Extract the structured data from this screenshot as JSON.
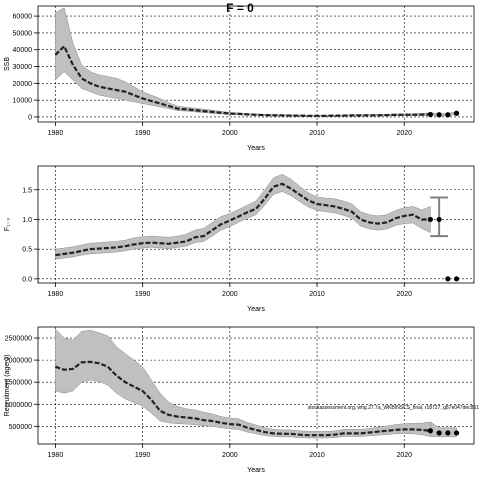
{
  "title": "F = 0",
  "annotation": "stockassessment.org, whg.27.7a_WKBINSCS_final, r18727, g87e047dec851",
  "colors": {
    "band": "#c0c0c0",
    "band_edge": "#8c8c8c",
    "line": "#222222",
    "grid": "#000000"
  },
  "chart_data": [
    {
      "type": "line",
      "xlabel": "Years",
      "ylabel": "SSB",
      "xlim": [
        1978,
        2028
      ],
      "ylim": [
        -3000,
        66000
      ],
      "xticks": [
        1980,
        1990,
        2000,
        2010,
        2020
      ],
      "yticks": [
        0,
        10000,
        20000,
        30000,
        40000,
        50000,
        60000
      ],
      "grid": true,
      "series": [
        {
          "x": [
            1980,
            1981,
            1982,
            1983,
            1984,
            1985,
            1986,
            1987,
            1988,
            1989,
            1990,
            1991,
            1992,
            1993,
            1994,
            1995,
            1996,
            1997,
            1998,
            1999,
            2000,
            2001,
            2002,
            2003,
            2004,
            2005,
            2006,
            2007,
            2008,
            2009,
            2010,
            2011,
            2012,
            2013,
            2014,
            2015,
            2016,
            2017,
            2018,
            2019,
            2020,
            2021,
            2022,
            2023
          ],
          "y": [
            37000,
            42000,
            31000,
            23000,
            20000,
            18000,
            17000,
            16000,
            15000,
            13000,
            11000,
            9500,
            8000,
            6500,
            5000,
            4500,
            4000,
            3500,
            3000,
            2500,
            2000,
            1800,
            1500,
            1300,
            1100,
            1000,
            900,
            800,
            800,
            700,
            700,
            700,
            800,
            800,
            900,
            900,
            1000,
            1000,
            1100,
            1200,
            1300,
            1300,
            1400,
            1500
          ],
          "lower": [
            22000,
            27000,
            22000,
            17000,
            15000,
            13000,
            12000,
            11000,
            10000,
            9000,
            8000,
            7000,
            6000,
            5000,
            3800,
            3500,
            3000,
            2600,
            2200,
            1800,
            1500,
            1300,
            1100,
            900,
            800,
            700,
            600,
            550,
            500,
            450,
            450,
            450,
            500,
            500,
            600,
            600,
            650,
            650,
            700,
            750,
            800,
            800,
            850,
            900
          ],
          "upper": [
            62000,
            65000,
            44000,
            31000,
            27000,
            25000,
            24000,
            23000,
            21000,
            18000,
            15000,
            13000,
            11000,
            8500,
            6500,
            5800,
            5200,
            4600,
            4000,
            3300,
            2700,
            2400,
            2000,
            1800,
            1500,
            1400,
            1300,
            1200,
            1100,
            1000,
            1000,
            1000,
            1100,
            1100,
            1300,
            1300,
            1400,
            1500,
            1600,
            1800,
            1900,
            2000,
            2100,
            2400
          ]
        }
      ],
      "forecast": {
        "x": [
          2023,
          2024,
          2025,
          2026
        ],
        "y": [
          1500,
          1300,
          1300,
          2200
        ],
        "lower": [
          900,
          700,
          700,
          1500
        ],
        "upper": [
          2400,
          2000,
          2000,
          3200
        ]
      }
    },
    {
      "type": "line",
      "xlabel": "Years",
      "ylabel": "F₁₋₃",
      "xlim": [
        1978,
        2028
      ],
      "ylim": [
        -0.07,
        1.9
      ],
      "xticks": [
        1980,
        1990,
        2000,
        2010,
        2020
      ],
      "yticks": [
        0.0,
        0.5,
        1.0,
        1.5
      ],
      "ytick_labels": [
        "0.0",
        "0.5",
        "1.0",
        "1.5"
      ],
      "grid": true,
      "series": [
        {
          "x": [
            1980,
            1981,
            1982,
            1983,
            1984,
            1985,
            1986,
            1987,
            1988,
            1989,
            1990,
            1991,
            1992,
            1993,
            1994,
            1995,
            1996,
            1997,
            1998,
            1999,
            2000,
            2001,
            2002,
            2003,
            2004,
            2005,
            2006,
            2007,
            2008,
            2009,
            2010,
            2011,
            2012,
            2013,
            2014,
            2015,
            2016,
            2017,
            2018,
            2019,
            2020,
            2021,
            2022,
            2023
          ],
          "y": [
            0.4,
            0.42,
            0.44,
            0.47,
            0.5,
            0.51,
            0.52,
            0.53,
            0.55,
            0.58,
            0.6,
            0.61,
            0.6,
            0.59,
            0.61,
            0.63,
            0.7,
            0.72,
            0.82,
            0.92,
            0.98,
            1.05,
            1.12,
            1.18,
            1.35,
            1.55,
            1.6,
            1.52,
            1.42,
            1.32,
            1.26,
            1.24,
            1.22,
            1.18,
            1.13,
            1.0,
            0.95,
            0.93,
            0.95,
            1.02,
            1.06,
            1.08,
            1.0,
            1.0
          ],
          "lower": [
            0.33,
            0.35,
            0.37,
            0.4,
            0.42,
            0.43,
            0.44,
            0.45,
            0.47,
            0.5,
            0.52,
            0.53,
            0.52,
            0.51,
            0.53,
            0.55,
            0.61,
            0.63,
            0.72,
            0.82,
            0.88,
            0.95,
            1.02,
            1.08,
            1.24,
            1.42,
            1.47,
            1.4,
            1.3,
            1.21,
            1.15,
            1.13,
            1.11,
            1.07,
            1.02,
            0.89,
            0.84,
            0.82,
            0.84,
            0.9,
            0.93,
            0.94,
            0.85,
            0.78
          ],
          "upper": [
            0.5,
            0.52,
            0.54,
            0.57,
            0.6,
            0.61,
            0.62,
            0.63,
            0.65,
            0.69,
            0.71,
            0.72,
            0.71,
            0.7,
            0.72,
            0.75,
            0.82,
            0.85,
            0.95,
            1.05,
            1.1,
            1.17,
            1.24,
            1.31,
            1.5,
            1.7,
            1.76,
            1.68,
            1.56,
            1.45,
            1.38,
            1.36,
            1.35,
            1.31,
            1.26,
            1.13,
            1.08,
            1.06,
            1.08,
            1.15,
            1.2,
            1.22,
            1.16,
            1.22
          ]
        }
      ],
      "forecast": {
        "x": [
          2023,
          2024,
          2025,
          2026
        ],
        "y": [
          1.0,
          1.0,
          0.0,
          0.0
        ]
      },
      "errorbar": {
        "x": 2024,
        "low": 0.72,
        "high": 1.37
      }
    },
    {
      "type": "line",
      "xlabel": "Years",
      "ylabel": "Recruitment (age 0)",
      "xlim": [
        1978,
        2028
      ],
      "ylim": [
        100000,
        2750000
      ],
      "xticks": [
        1980,
        1990,
        2000,
        2010,
        2020
      ],
      "yticks": [
        500000,
        1000000,
        1500000,
        2000000,
        2500000
      ],
      "grid": true,
      "series": [
        {
          "x": [
            1980,
            1981,
            1982,
            1983,
            1984,
            1985,
            1986,
            1987,
            1988,
            1989,
            1990,
            1991,
            1992,
            1993,
            1994,
            1995,
            1996,
            1997,
            1998,
            1999,
            2000,
            2001,
            2002,
            2003,
            2004,
            2005,
            2006,
            2007,
            2008,
            2009,
            2010,
            2011,
            2012,
            2013,
            2014,
            2015,
            2016,
            2017,
            2018,
            2019,
            2020,
            2021,
            2022,
            2023
          ],
          "y": [
            1850000,
            1780000,
            1800000,
            1950000,
            1960000,
            1930000,
            1850000,
            1650000,
            1500000,
            1400000,
            1300000,
            1100000,
            850000,
            760000,
            720000,
            700000,
            680000,
            640000,
            620000,
            580000,
            550000,
            540000,
            470000,
            420000,
            370000,
            340000,
            330000,
            330000,
            310000,
            300000,
            300000,
            300000,
            310000,
            340000,
            340000,
            340000,
            360000,
            380000,
            400000,
            420000,
            430000,
            430000,
            420000,
            400000
          ],
          "lower": [
            1300000,
            1250000,
            1300000,
            1500000,
            1550000,
            1520000,
            1430000,
            1250000,
            1120000,
            1040000,
            960000,
            800000,
            620000,
            580000,
            560000,
            550000,
            540000,
            510000,
            500000,
            470000,
            440000,
            430000,
            370000,
            330000,
            290000,
            270000,
            260000,
            260000,
            245000,
            235000,
            235000,
            235000,
            245000,
            270000,
            270000,
            270000,
            285000,
            300000,
            315000,
            330000,
            335000,
            330000,
            310000,
            270000
          ],
          "upper": [
            2700000,
            2500000,
            2450000,
            2650000,
            2680000,
            2620000,
            2550000,
            2300000,
            2150000,
            2000000,
            1850000,
            1550000,
            1250000,
            1050000,
            950000,
            900000,
            870000,
            820000,
            780000,
            720000,
            690000,
            670000,
            590000,
            530000,
            470000,
            430000,
            420000,
            420000,
            400000,
            385000,
            385000,
            385000,
            395000,
            430000,
            430000,
            430000,
            450000,
            480000,
            510000,
            540000,
            560000,
            570000,
            570000,
            600000
          ]
        }
      ],
      "forecast": {
        "x": [
          2023,
          2024,
          2025,
          2026
        ],
        "y": [
          400000,
          350000,
          350000,
          350000
        ],
        "lower": [
          270000,
          260000,
          260000,
          260000
        ],
        "upper": [
          600000,
          470000,
          470000,
          470000
        ]
      }
    }
  ]
}
